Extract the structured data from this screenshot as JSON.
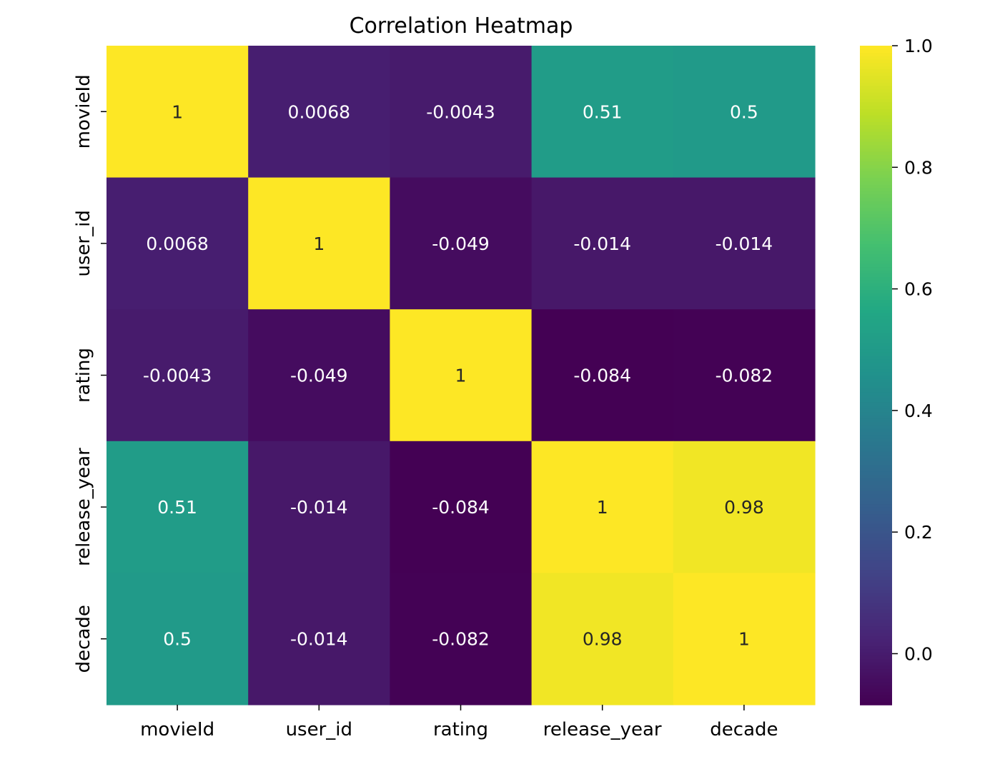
{
  "chart_data": {
    "type": "heatmap",
    "title": "Correlation Heatmap",
    "x_labels": [
      "movieId",
      "user_id",
      "rating",
      "release_year",
      "decade"
    ],
    "y_labels": [
      "movieId",
      "user_id",
      "rating",
      "release_year",
      "decade"
    ],
    "values": [
      [
        1,
        0.0068,
        -0.0043,
        0.51,
        0.5
      ],
      [
        0.0068,
        1,
        -0.049,
        -0.014,
        -0.014
      ],
      [
        -0.0043,
        -0.049,
        1,
        -0.084,
        -0.082
      ],
      [
        0.51,
        -0.014,
        -0.084,
        1,
        0.98
      ],
      [
        0.5,
        -0.014,
        -0.082,
        0.98,
        1
      ]
    ],
    "annotations": [
      [
        "1",
        "0.0068",
        "-0.0043",
        "0.51",
        "0.5"
      ],
      [
        "0.0068",
        "1",
        "-0.049",
        "-0.014",
        "-0.014"
      ],
      [
        "-0.0043",
        "-0.049",
        "1",
        "-0.084",
        "-0.082"
      ],
      [
        "0.51",
        "-0.014",
        "-0.084",
        "1",
        "0.98"
      ],
      [
        "0.5",
        "-0.014",
        "-0.082",
        "0.98",
        "1"
      ]
    ],
    "colormap": "viridis",
    "colorbar": {
      "vmin": -0.084,
      "vmax": 1.0,
      "ticks": [
        0.0,
        0.2,
        0.4,
        0.6,
        0.8,
        1.0
      ],
      "tick_labels": [
        "0.0",
        "0.2",
        "0.4",
        "0.6",
        "0.8",
        "1.0"
      ]
    },
    "xlabel": "",
    "ylabel": "",
    "grid": false,
    "legend": "colorbar right"
  }
}
